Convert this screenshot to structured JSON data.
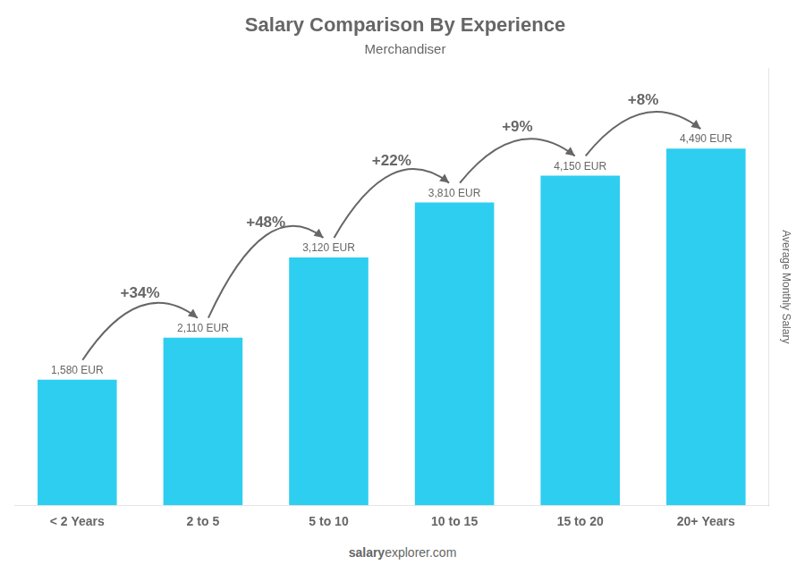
{
  "chart_data": {
    "type": "bar",
    "title": "Salary Comparison By Experience",
    "subtitle": "Merchandiser",
    "categories": [
      "< 2 Years",
      "2 to 5",
      "5 to 10",
      "10 to 15",
      "15 to 20",
      "20+ Years"
    ],
    "values": [
      1580,
      2110,
      3120,
      3810,
      4150,
      4490
    ],
    "value_labels": [
      "1,580 EUR",
      "2,110 EUR",
      "3,120 EUR",
      "3,810 EUR",
      "4,150 EUR",
      "4,490 EUR"
    ],
    "data_labels": true,
    "annotations": [
      "+34%",
      "+48%",
      "+22%",
      "+9%",
      "+8%"
    ],
    "color": "#2ecef0",
    "ylabel": "Average Monthly Salary",
    "footer": [
      "salary",
      "explorer.com"
    ],
    "ylim": [
      0,
      5500
    ],
    "grid": false,
    "tick_labels": "x"
  }
}
